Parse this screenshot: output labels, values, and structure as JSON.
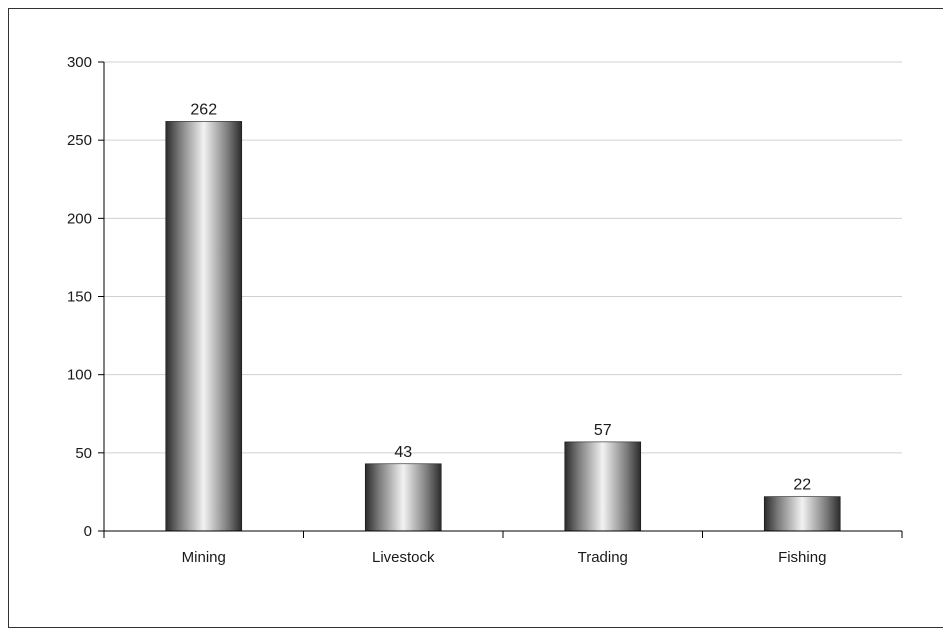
{
  "chart_data": {
    "type": "bar",
    "categories": [
      "Mining",
      "Livestock",
      "Trading",
      "Fishing"
    ],
    "values": [
      262,
      43,
      57,
      22
    ],
    "data_labels": [
      "262",
      "43",
      "57",
      "22"
    ],
    "title": "",
    "xlabel": "",
    "ylabel": "",
    "ylim": [
      0,
      300
    ],
    "yticks": [
      0,
      50,
      100,
      150,
      200,
      250,
      300
    ],
    "ytick_labels": [
      "0",
      "50",
      "100",
      "150",
      "200",
      "250",
      "300"
    ],
    "grid": true,
    "legend": "none",
    "bar_style": "cylindrical metallic gradient",
    "colors": {
      "bar_dark": "#2b2b2b",
      "bar_light": "#f2f2f2",
      "grid": "#d0d0d0",
      "axis": "#000000"
    }
  }
}
